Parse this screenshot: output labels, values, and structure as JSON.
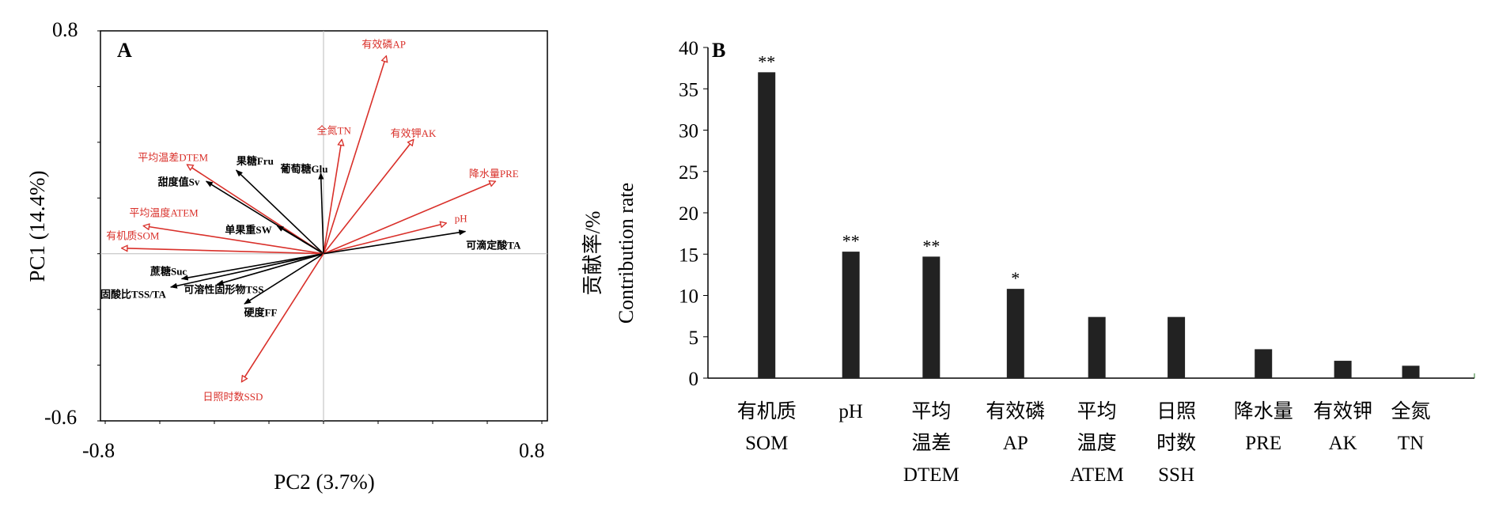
{
  "chart_data": [
    {
      "type": "biplot",
      "panel_label": "A",
      "xlabel": "PC2 (3.7%)",
      "ylabel": "PC1 (14.4%)",
      "xlim": [
        -0.8,
        0.8
      ],
      "ylim": [
        -0.6,
        0.8
      ],
      "x_ticks": [
        "-0.8",
        "0.8"
      ],
      "y_ticks": [
        "0.8",
        "-0.6"
      ],
      "colors": {
        "environment": "#d9302a",
        "quality": "#000000"
      },
      "vectors": [
        {
          "label": "有效磷AP",
          "group": "environment",
          "x": 0.23,
          "y": 0.71
        },
        {
          "label": "全氮TN",
          "group": "environment",
          "x": 0.067,
          "y": 0.41
        },
        {
          "label": "有效钾AK",
          "group": "environment",
          "x": 0.33,
          "y": 0.41
        },
        {
          "label": "降水量PRE",
          "group": "environment",
          "x": 0.63,
          "y": 0.26
        },
        {
          "label": "pH",
          "group": "environment",
          "x": 0.45,
          "y": 0.11
        },
        {
          "label": "可滴定酸TA",
          "group": "quality",
          "x": 0.52,
          "y": 0.08
        },
        {
          "label": "葡萄糖Glu",
          "group": "quality",
          "x": -0.01,
          "y": 0.29
        },
        {
          "label": "果糖Fru",
          "group": "quality",
          "x": -0.32,
          "y": 0.3
        },
        {
          "label": "平均温差DTEM",
          "group": "environment",
          "x": -0.5,
          "y": 0.32
        },
        {
          "label": "甜度值Sv",
          "group": "quality",
          "x": -0.43,
          "y": 0.26
        },
        {
          "label": "单果重SW",
          "group": "quality",
          "x": -0.17,
          "y": 0.1
        },
        {
          "label": "平均温度ATEM",
          "group": "environment",
          "x": -0.66,
          "y": 0.1
        },
        {
          "label": "有机质SOM",
          "group": "environment",
          "x": -0.74,
          "y": 0.02
        },
        {
          "label": "蔗糖Suc",
          "group": "quality",
          "x": -0.52,
          "y": -0.09
        },
        {
          "label": "固酸比TSS/TA",
          "group": "quality",
          "x": -0.56,
          "y": -0.12
        },
        {
          "label": "可溶性固形物TSS",
          "group": "quality",
          "x": -0.39,
          "y": -0.11
        },
        {
          "label": "硬度FF",
          "group": "quality",
          "x": -0.29,
          "y": -0.18
        },
        {
          "label": "日照时数SSD",
          "group": "environment",
          "x": -0.3,
          "y": -0.46
        }
      ]
    },
    {
      "type": "bar",
      "panel_label": "B",
      "ylabel_cn": "贡献率/%",
      "ylabel_en": "Contribution rate",
      "ylim": [
        0,
        40
      ],
      "y_ticks": [
        "0",
        "5",
        "10",
        "15",
        "20",
        "25",
        "30",
        "35",
        "40"
      ],
      "categories": [
        [
          "有机质",
          "SOM"
        ],
        [
          "pH"
        ],
        [
          "平均",
          "温差",
          "DTEM"
        ],
        [
          "有效磷",
          "AP"
        ],
        [
          "平均",
          "温度",
          "ATEM"
        ],
        [
          "日照",
          "时数",
          "SSH"
        ],
        [
          "降水量",
          "PRE"
        ],
        [
          "有效钾",
          "AK"
        ],
        [
          "全氮",
          "TN"
        ]
      ],
      "values": [
        37,
        15.3,
        14.7,
        10.8,
        7.4,
        7.4,
        3.5,
        2.1,
        1.5
      ],
      "significance": [
        "**",
        "**",
        "**",
        "*",
        "",
        "",
        "",
        "",
        ""
      ],
      "bar_color": "#222222"
    }
  ]
}
